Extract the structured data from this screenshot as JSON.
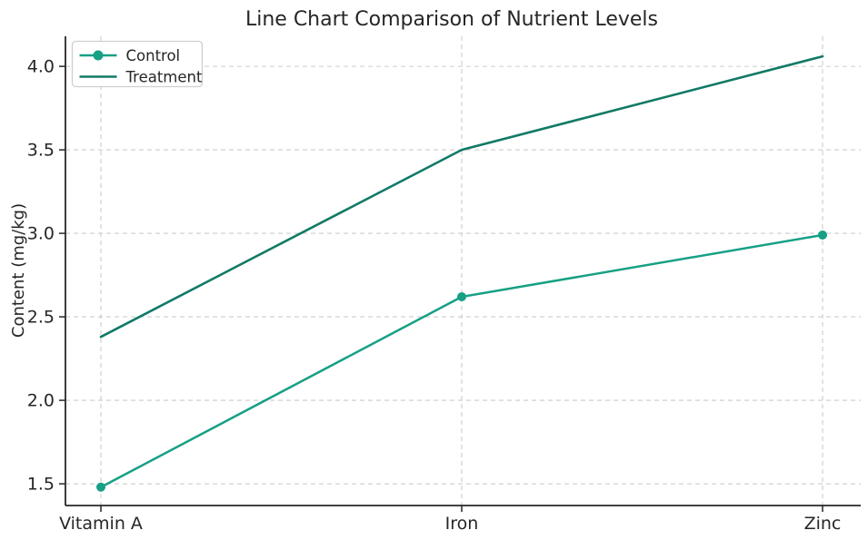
{
  "chart_data": {
    "type": "line",
    "title": "Line Chart Comparison of Nutrient Levels",
    "xlabel": "",
    "ylabel": "Content (mg/kg)",
    "categories": [
      "Vitamin A",
      "Iron",
      "Zinc"
    ],
    "series": [
      {
        "name": "Control",
        "values": [
          1.48,
          2.62,
          2.99
        ],
        "color": "#16a085",
        "marker": "circle",
        "line_width": 2.5
      },
      {
        "name": "Treatment",
        "values": [
          2.38,
          3.5,
          4.06
        ],
        "color": "#117a65",
        "marker": "none",
        "line_width": 2.6
      }
    ],
    "yticks": [
      1.5,
      2.0,
      2.5,
      3.0,
      3.5,
      4.0
    ],
    "ytick_labels": [
      "1.5",
      "2.0",
      "2.5",
      "3.0",
      "3.5",
      "4.0"
    ],
    "ylim": [
      1.37,
      4.18
    ],
    "grid": true,
    "grid_style": "dashed",
    "legend": {
      "position": "upper left",
      "entries": [
        "Control",
        "Treatment"
      ]
    }
  },
  "colors": {
    "control": "#16a085",
    "treatment": "#117a65",
    "grid": "#cccccc",
    "axis": "#262626",
    "text": "#262626",
    "background": "#ffffff",
    "legend_border": "#cfcfcf"
  }
}
